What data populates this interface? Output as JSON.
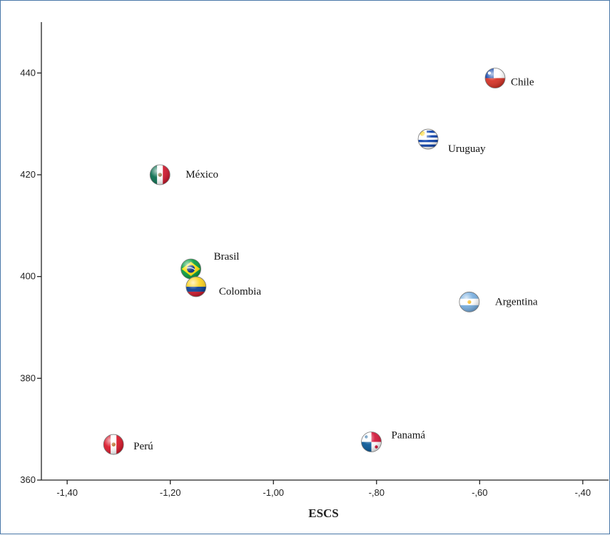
{
  "chart_data": {
    "type": "scatter",
    "title": "",
    "xlabel": "ESCS",
    "ylabel": "",
    "xlim": [
      -1.45,
      -0.35
    ],
    "ylim": [
      360,
      450
    ],
    "grid": false,
    "x_ticks": [
      -1.4,
      -1.2,
      -1.0,
      -0.8,
      -0.6,
      -0.4
    ],
    "x_tick_labels": [
      "-1,40",
      "-1,20",
      "-1,00",
      "-,80",
      "-,60",
      "-,40"
    ],
    "y_ticks": [
      360,
      380,
      400,
      420,
      440
    ],
    "y_tick_labels": [
      "360",
      "380",
      "400",
      "420",
      "440"
    ],
    "points": [
      {
        "label": "Chile",
        "x": -0.57,
        "y": 439,
        "marker": "chile-flag-icon"
      },
      {
        "label": "Uruguay",
        "x": -0.7,
        "y": 427,
        "marker": "uruguay-flag-icon"
      },
      {
        "label": "México",
        "x": -1.22,
        "y": 420,
        "marker": "mexico-flag-icon"
      },
      {
        "label": "Brasil",
        "x": -1.16,
        "y": 401.5,
        "marker": "brazil-flag-icon"
      },
      {
        "label": "Colombia",
        "x": -1.15,
        "y": 398,
        "marker": "colombia-flag-icon"
      },
      {
        "label": "Argentina",
        "x": -0.62,
        "y": 395,
        "marker": "argentina-flag-icon"
      },
      {
        "label": "Perú",
        "x": -1.31,
        "y": 367,
        "marker": "peru-flag-icon"
      },
      {
        "label": "Panamá",
        "x": -0.81,
        "y": 367.5,
        "marker": "panama-flag-icon"
      }
    ]
  }
}
